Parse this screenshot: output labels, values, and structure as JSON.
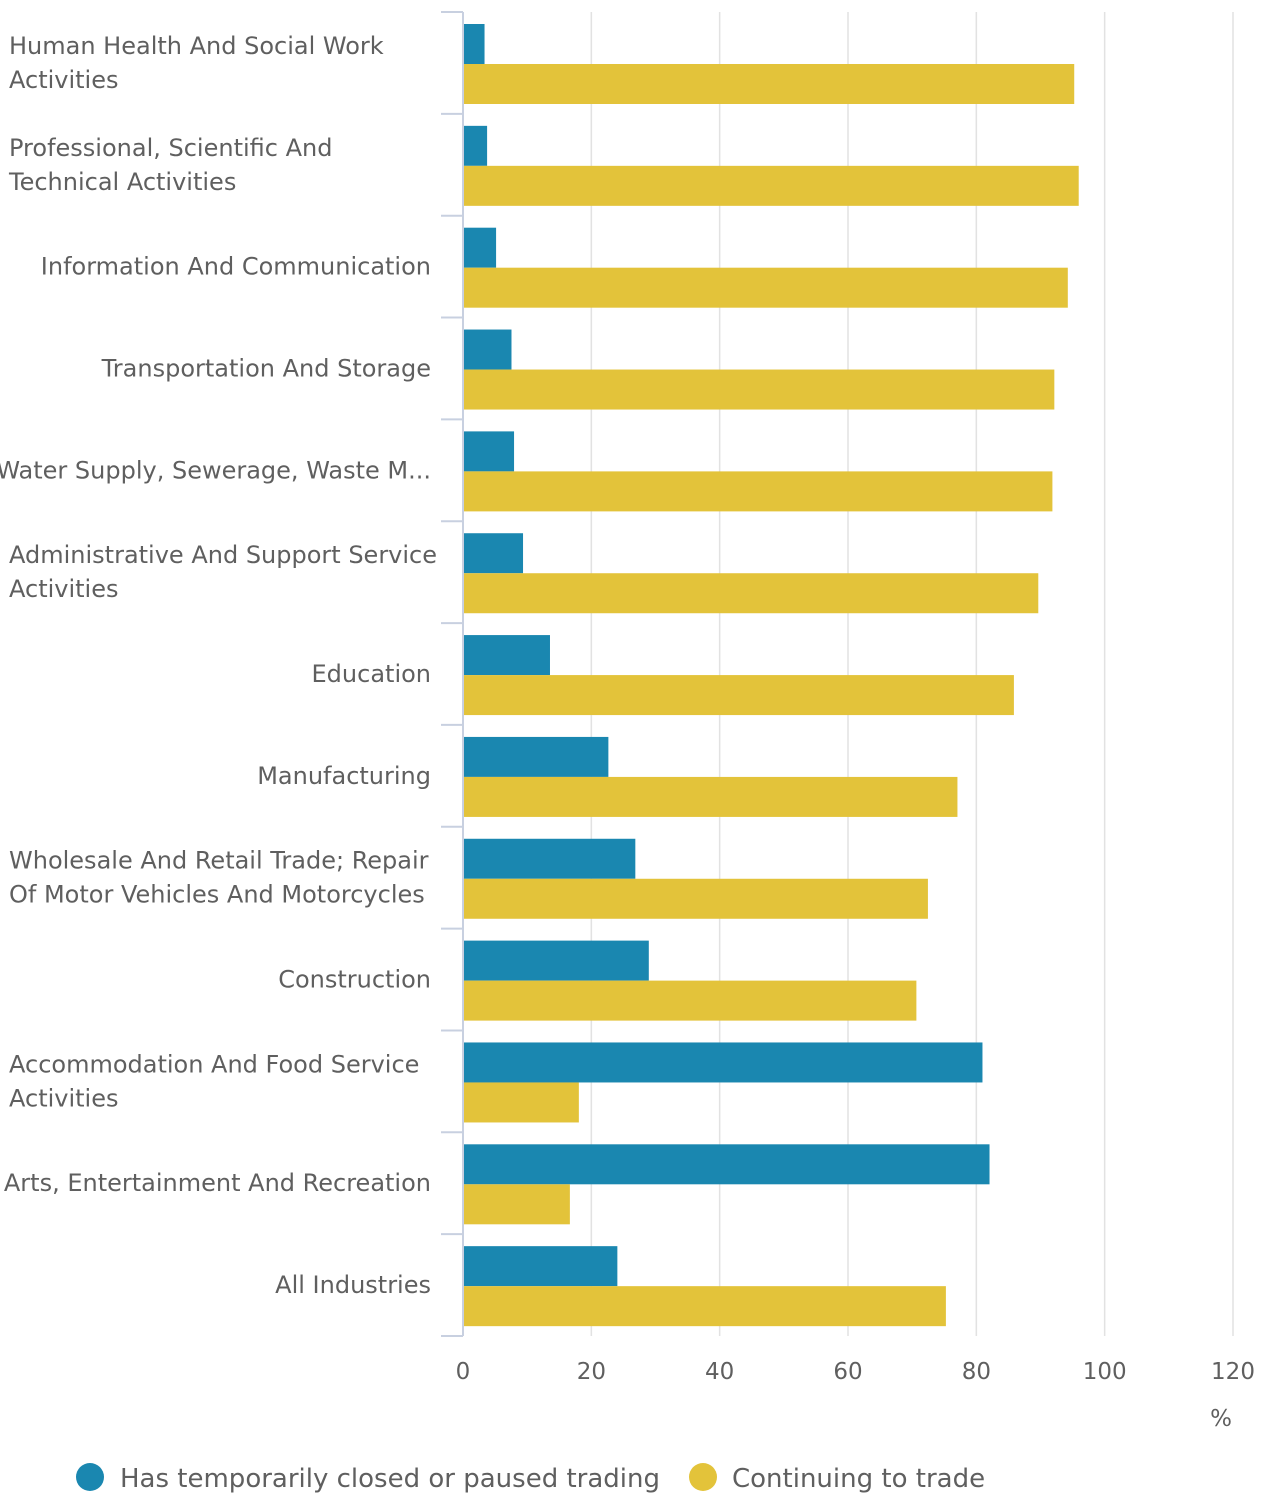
{
  "chart_data": {
    "type": "bar",
    "orientation": "horizontal",
    "categories": [
      "Human Health And Social Work Activities",
      "Professional, Scientific And Technical Activities",
      "Information And Communication",
      "Transportation And Storage",
      "Water Supply, Sewerage, Waste M...",
      "Administrative And Support Service Activities",
      "Education",
      "Manufacturing",
      "Wholesale And Retail Trade; Repair Of Motor Vehicles And Motorcycles",
      "Construction",
      "Accommodation And Food Service Activities",
      "Arts, Entertainment And Recreation",
      "All Industries"
    ],
    "category_lines": [
      [
        "Human Health And Social Work",
        "Activities"
      ],
      [
        "Professional, Scientific And",
        "Technical Activities"
      ],
      [
        "Information And Communication"
      ],
      [
        "Transportation And Storage"
      ],
      [
        "Water Supply, Sewerage, Waste M..."
      ],
      [
        "Administrative And Support Service",
        "Activities"
      ],
      [
        "Education"
      ],
      [
        "Manufacturing"
      ],
      [
        "Wholesale And Retail Trade; Repair",
        "Of Motor Vehicles And Motorcycles"
      ],
      [
        "Construction"
      ],
      [
        "Accommodation And Food Service",
        "Activities"
      ],
      [
        "Arts, Entertainment And Recreation"
      ],
      [
        "All Industries"
      ]
    ],
    "series": [
      {
        "name": "Has temporarily closed or paused trading",
        "color": "#1a87b0",
        "values": [
          3.2,
          3.6,
          5.0,
          7.4,
          7.8,
          9.2,
          13.4,
          22.5,
          26.7,
          28.8,
          80.8,
          81.9,
          23.9
        ]
      },
      {
        "name": "Continuing to trade",
        "color": "#e3c33a",
        "values": [
          95.1,
          95.8,
          94.1,
          92.0,
          91.7,
          89.5,
          85.7,
          76.9,
          72.3,
          70.5,
          17.9,
          16.5,
          75.1
        ]
      }
    ],
    "xlim": [
      0,
      120
    ],
    "x_ticks": [
      0,
      20,
      40,
      60,
      80,
      100,
      120
    ],
    "x_unit": "%",
    "grid": true,
    "legend_position": "bottom-left"
  }
}
